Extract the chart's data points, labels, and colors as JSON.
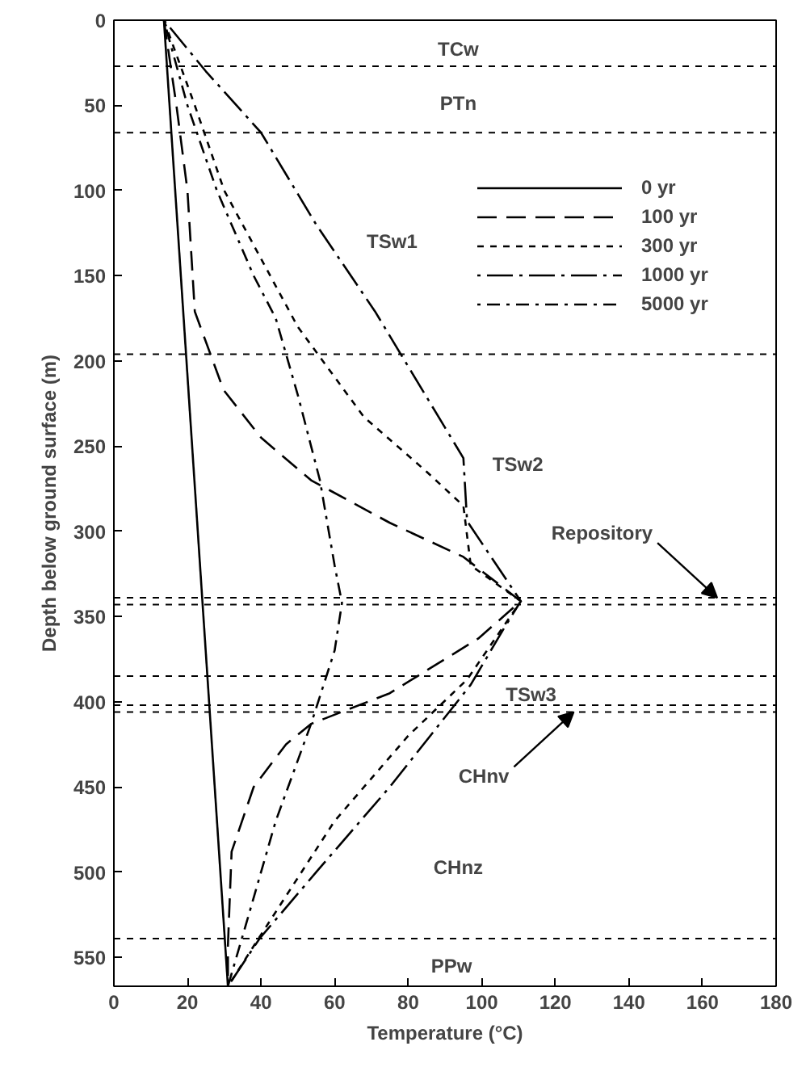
{
  "chart_data": {
    "type": "line",
    "xlabel": "Temperature (°C)",
    "ylabel": "Depth below ground surface (m)",
    "xlim": [
      0,
      180
    ],
    "xticks": [
      0,
      20,
      40,
      60,
      80,
      100,
      120,
      140,
      160,
      180
    ],
    "ylim": [
      567,
      0
    ],
    "yticks": [
      0,
      50,
      100,
      150,
      200,
      250,
      300,
      350,
      400,
      450,
      500,
      550
    ],
    "grid": false,
    "legend": "top right",
    "marker": "none",
    "series": [
      {
        "name": "0 yr",
        "color": "#000000",
        "line_style": "solid",
        "x": [
          13.6,
          31
        ],
        "values": [
          0,
          567
        ]
      },
      {
        "name": "100 yr",
        "color": "#000000",
        "line_style": "dashed",
        "x": [
          13.6,
          17,
          20,
          22,
          29.8,
          40,
          53.6,
          75,
          95,
          110.6,
          99,
          75,
          53.6,
          46.8,
          38,
          32,
          31,
          31
        ],
        "values": [
          0,
          50,
          100,
          171,
          217,
          245,
          270,
          295,
          315,
          341,
          363,
          395,
          413,
          425,
          450,
          488,
          543,
          567
        ]
      },
      {
        "name": "300 yr",
        "color": "#000000",
        "line_style": "dotted",
        "x": [
          13.6,
          22,
          30,
          40,
          50,
          68,
          85,
          95,
          97,
          110.6,
          96,
          80,
          60,
          42,
          31
        ],
        "values": [
          0,
          50,
          100,
          140,
          180,
          233,
          265,
          285,
          320,
          341,
          387,
          420,
          470,
          530,
          567
        ]
      },
      {
        "name": "1000 yr",
        "color": "#000000",
        "line_style": "dashdot",
        "x": [
          13.6,
          25,
          40,
          55,
          71,
          95,
          96,
          110.6,
          106,
          97,
          75,
          55,
          39.6,
          31
        ],
        "values": [
          0,
          30,
          66,
          120,
          171,
          257,
          294,
          341,
          357,
          390,
          450,
          500,
          539,
          567
        ]
      },
      {
        "name": "5000 yr",
        "color": "#000000",
        "line_style": "dotdash",
        "x": [
          13.6,
          20,
          28,
          38,
          44,
          50,
          56,
          60,
          62,
          60,
          53.6,
          44,
          36,
          31
        ],
        "values": [
          0,
          50,
          100,
          150,
          175,
          220,
          270,
          320,
          342,
          370,
          413,
          470,
          530,
          567
        ]
      }
    ],
    "ref_lines": [
      {
        "axis": "y",
        "value": 27,
        "line_style": "dotted"
      },
      {
        "axis": "y",
        "value": 66,
        "line_style": "dotted"
      },
      {
        "axis": "y",
        "value": 196,
        "line_style": "dotted"
      },
      {
        "axis": "y",
        "value": 339,
        "line_style": "dotted"
      },
      {
        "axis": "y",
        "value": 343,
        "line_style": "dotted"
      },
      {
        "axis": "y",
        "value": 385,
        "line_style": "dotted"
      },
      {
        "axis": "y",
        "value": 402,
        "line_style": "dotted"
      },
      {
        "axis": "y",
        "value": 406,
        "line_style": "dotted"
      },
      {
        "axis": "y",
        "value": 539,
        "line_style": "dotted"
      }
    ],
    "annotations": [
      "TCw",
      "PTn",
      "TSw1",
      "TSw2",
      {
        "text": "Repository",
        "x": 164,
        "y": 339
      },
      "TSw3",
      {
        "text": "CHnv",
        "x": 125,
        "y": 406
      },
      "CHnz",
      "PPw"
    ]
  }
}
